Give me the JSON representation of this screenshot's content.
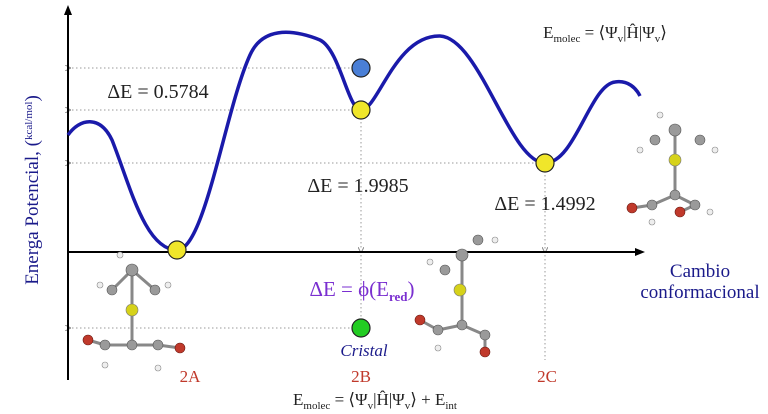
{
  "diagram": {
    "y_axis_label": [
      "Energa Potencial, (",
      "kcal",
      "mol",
      ")"
    ],
    "x_axis_label": [
      "Cambio",
      "conformacional"
    ],
    "equation_top": [
      "E",
      "molec",
      " = ⟨Ψ",
      "v",
      "|Ĥ|Ψ",
      "v",
      "⟩"
    ],
    "equation_bottom": [
      "E",
      "molec",
      " = ⟨Ψ",
      "v",
      "|Ĥ|Ψ",
      "v",
      "⟩ + E",
      "int"
    ],
    "delta_labels": [
      "ΔE = 0.5784",
      "ΔE = 1.9985",
      "ΔE = 1.4992"
    ],
    "delta_reduced": [
      "ΔE = ϕ(E",
      "red",
      ")"
    ],
    "crystal_label": "Cristal",
    "conformers": [
      "2A",
      "2B",
      "2C"
    ]
  }
}
